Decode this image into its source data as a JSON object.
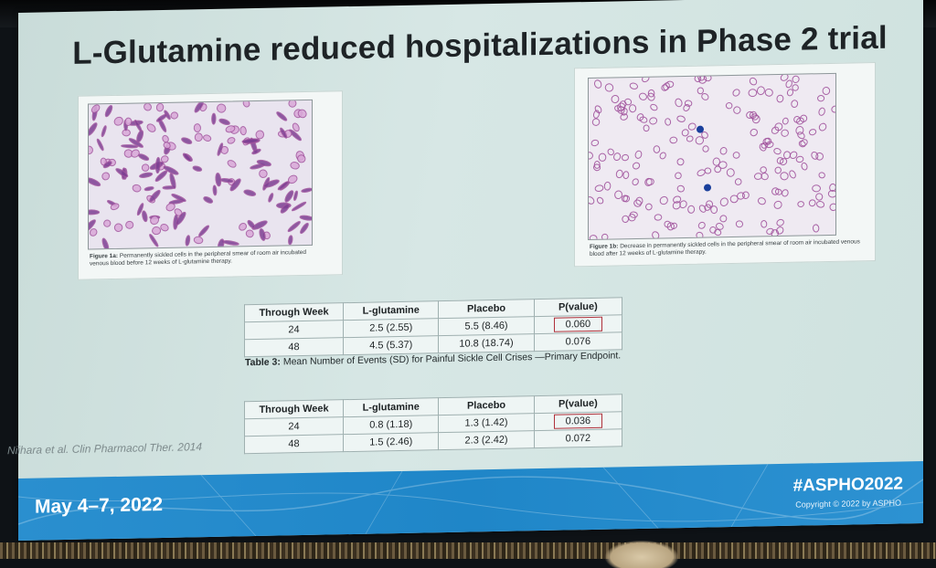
{
  "slide": {
    "title": "L-Glutamine reduced hospitalizations in Phase 2 trial"
  },
  "figures": {
    "fig1": {
      "label": "Figure 1a:",
      "caption": "Permanently sickled cells in the peripheral smear of room air incubated venous blood before 12 weeks of L-glutamine therapy."
    },
    "fig2": {
      "label": "Figure 1b:",
      "caption": "Decrease in permanently sickled cells in the peripheral smear of room air incubated venous blood after 12 weeks of L-glutamine therapy."
    }
  },
  "table1": {
    "headers": [
      "Through Week",
      "L-glutamine",
      "Placebo",
      "P(value)"
    ],
    "rows": [
      [
        "24",
        "2.5 (2.55)",
        "5.5 (8.46)",
        "0.060"
      ],
      [
        "48",
        "4.5 (5.37)",
        "10.8 (18.74)",
        "0.076"
      ]
    ],
    "caption_label": "Table 3:",
    "caption": "Mean Number of Events (SD) for Painful Sickle Cell Crises —Primary Endpoint."
  },
  "table2": {
    "headers": [
      "Through Week",
      "L-glutamine",
      "Placebo",
      "P(value)"
    ],
    "rows": [
      [
        "24",
        "0.8 (1.18)",
        "1.3 (1.42)",
        "0.036"
      ],
      [
        "48",
        "1.5 (2.46)",
        "2.3 (2.42)",
        "0.072"
      ]
    ]
  },
  "citation": "Niihara et al. Clin Pharmacol Ther. 2014",
  "footer": {
    "date": "May 4–7, 2022",
    "hashtag": "#ASPHO2022",
    "copyright": "Copyright © 2022 by ASPHO"
  },
  "colors": {
    "slide_bg": "#d7e7e5",
    "footer_bar": "#1f86c8",
    "highlight_box": "#b0303a",
    "cell_stain": "#a2559e",
    "nucleus": "#1a3f9c"
  }
}
